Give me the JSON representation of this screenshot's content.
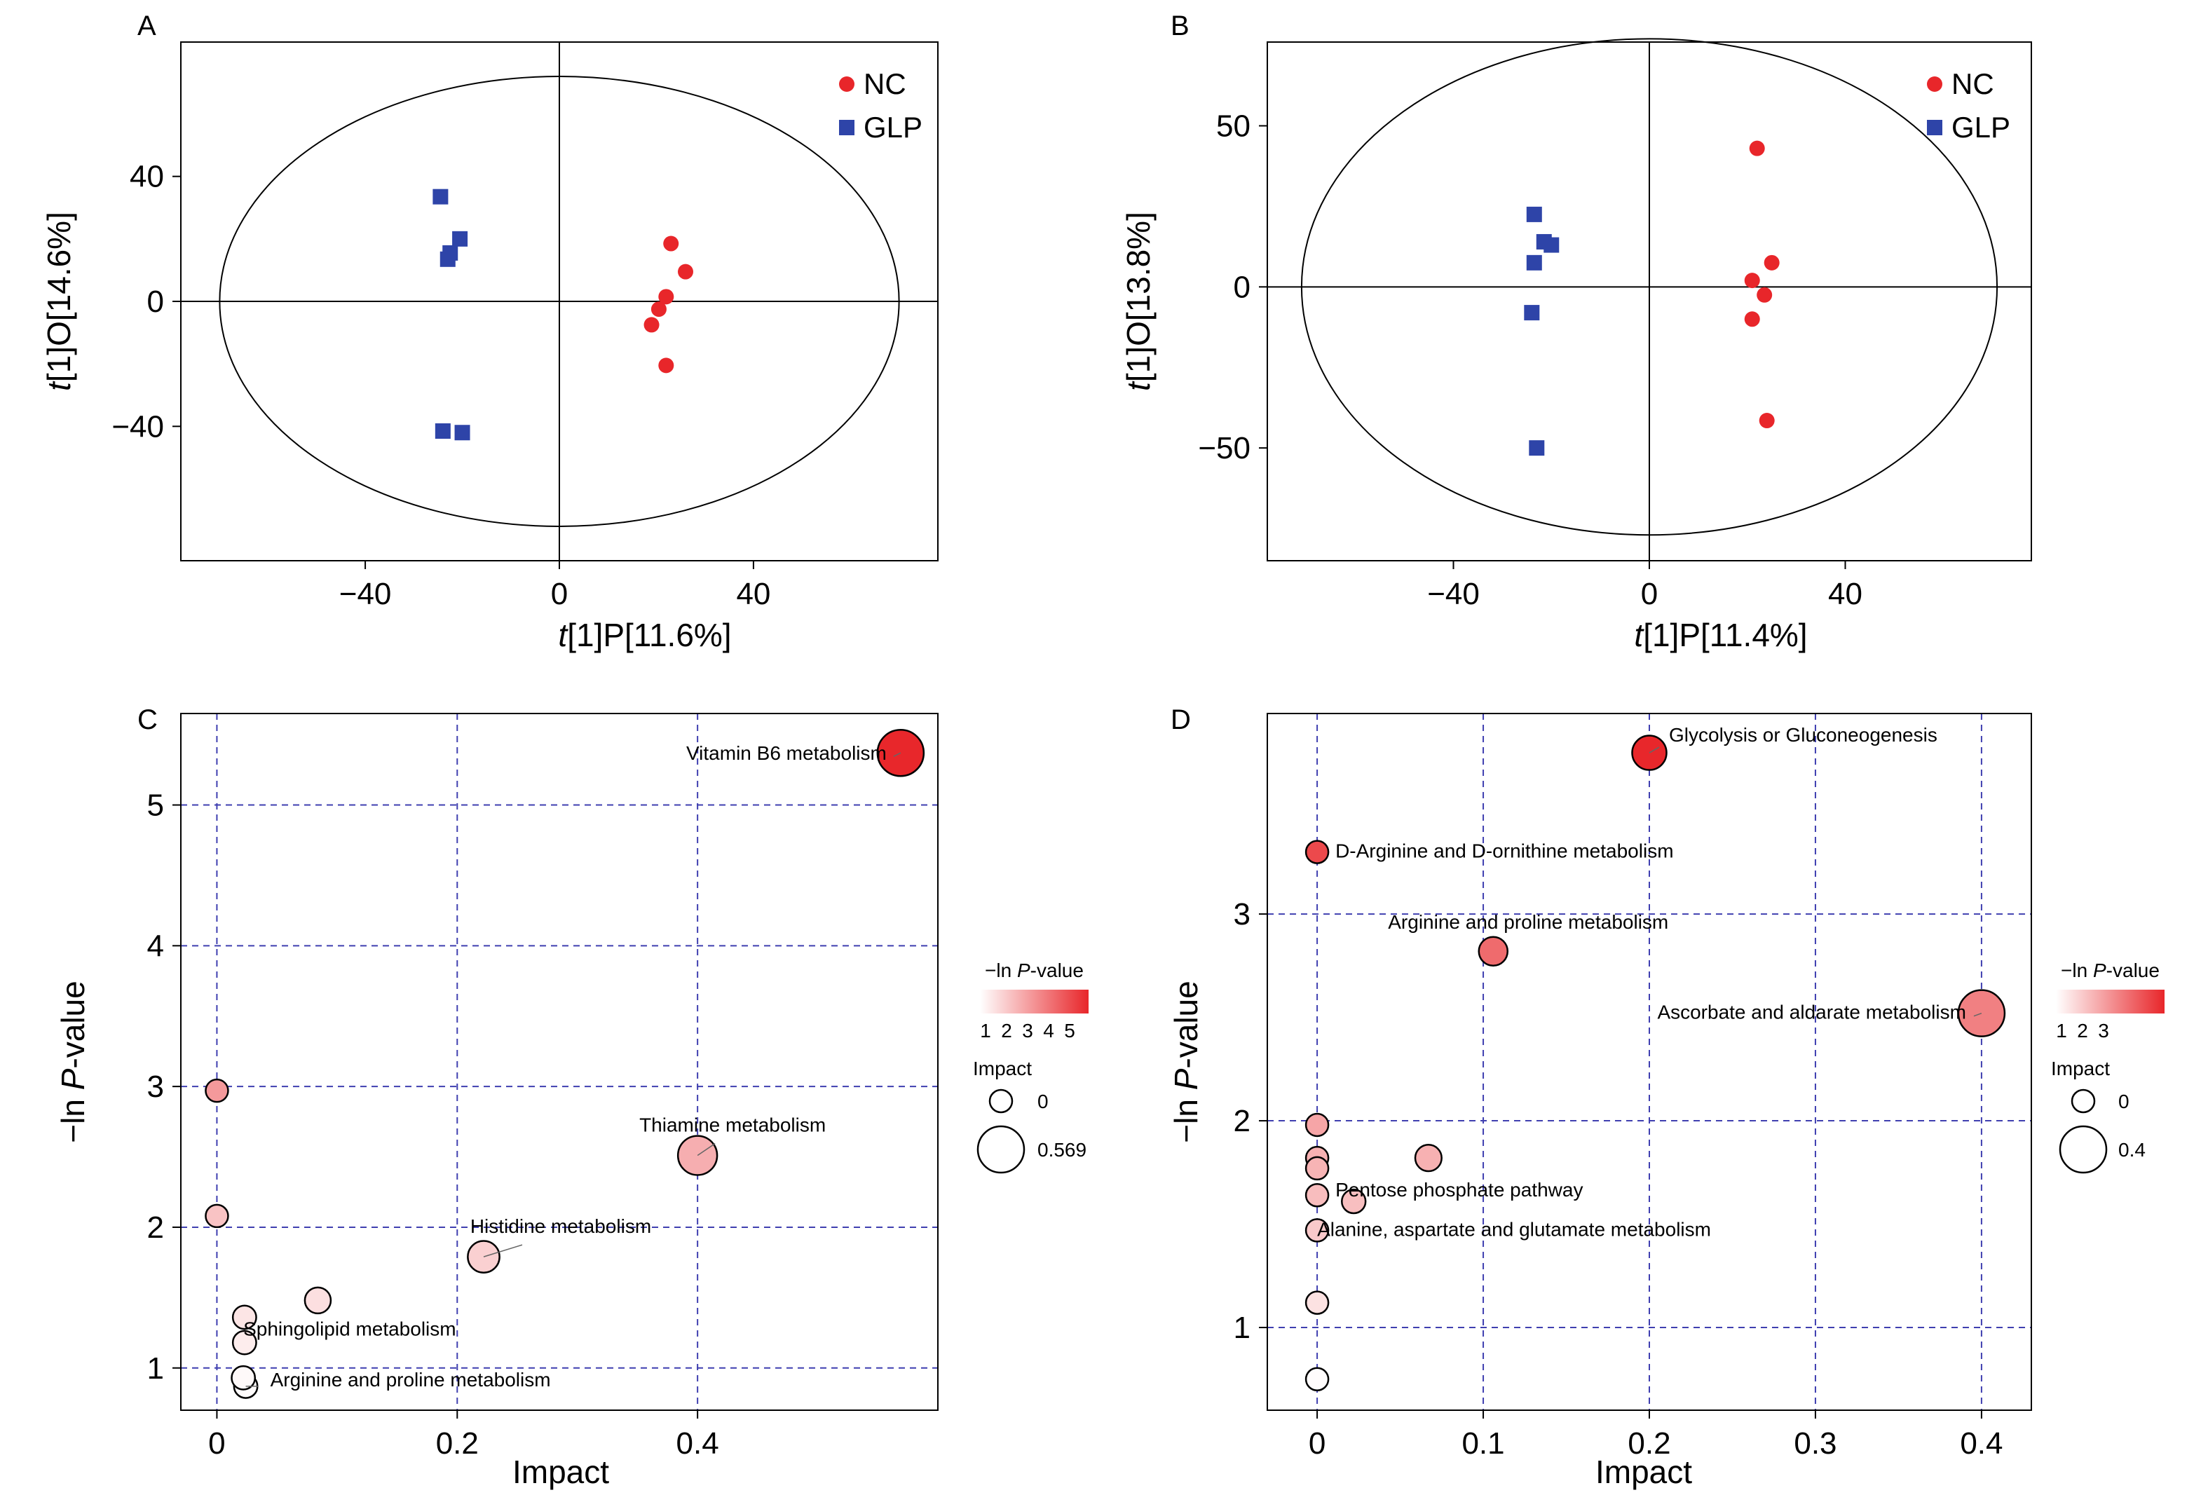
{
  "colors": {
    "nc": "#e8262a",
    "glp": "#2e44a8",
    "grid": "#3f3fb0",
    "scale_low": "#ffffff",
    "scale_high": "#e8262a",
    "axis": "#000000"
  },
  "chart_data": [
    {
      "panel": "A",
      "type": "scatter",
      "xlabel_italic": "t",
      "xlabel_rest": "[1]P[11.6%]",
      "ylabel_italic": "t",
      "ylabel_rest": "[1]O[14.6%]",
      "xlim": [
        -78,
        78
      ],
      "ylim": [
        -83,
        83
      ],
      "xticks": [
        -40,
        0,
        40
      ],
      "yticks": [
        -40,
        0,
        40
      ],
      "ellipse": {
        "rx": 70,
        "ry": 72
      },
      "legend": "top-right",
      "series": [
        {
          "name": "NC",
          "marker": "circle",
          "x": [
            23,
            26,
            22,
            20.5,
            19,
            22
          ],
          "y": [
            18.5,
            9.5,
            1.5,
            -2.5,
            -7.5,
            -20.5
          ]
        },
        {
          "name": "GLP",
          "marker": "square",
          "x": [
            -24.5,
            -20.5,
            -22.5,
            -23,
            -24,
            -20
          ],
          "y": [
            33.5,
            20,
            15.5,
            13.5,
            -41.5,
            -42
          ]
        }
      ]
    },
    {
      "panel": "B",
      "type": "scatter",
      "xlabel_italic": "t",
      "xlabel_rest": "[1]P[11.4%]",
      "ylabel_italic": "t",
      "ylabel_rest": "[1]O[13.8%]",
      "xlim": [
        -78,
        78
      ],
      "ylim": [
        -85,
        76
      ],
      "xticks": [
        -40,
        0,
        40
      ],
      "yticks": [
        -50,
        0,
        50
      ],
      "ellipse": {
        "rx": 71,
        "ry": 77
      },
      "legend": "top-right",
      "series": [
        {
          "name": "NC",
          "marker": "circle",
          "x": [
            22,
            25,
            21,
            23.5,
            21,
            24
          ],
          "y": [
            43,
            7.5,
            2,
            -2.5,
            -10,
            -41.5
          ]
        },
        {
          "name": "GLP",
          "marker": "square",
          "x": [
            -23.5,
            -21.5,
            -20,
            -23.5,
            -24,
            -23
          ],
          "y": [
            22.5,
            14,
            13,
            7.5,
            -8,
            -50
          ]
        }
      ]
    },
    {
      "panel": "C",
      "type": "scatter",
      "xlabel": "Impact",
      "ylabel_pre": "−ln ",
      "ylabel_italic": "P",
      "ylabel_post": "-value",
      "xlim": [
        -0.03,
        0.6
      ],
      "ylim": [
        0.7,
        5.65
      ],
      "xticks": [
        "0",
        "0.2",
        "0.4"
      ],
      "xtick_values": [
        0,
        0.2,
        0.4
      ],
      "yticks": [
        "1",
        "2",
        "3",
        "4",
        "5"
      ],
      "ytick_values": [
        1,
        2,
        3,
        4,
        5
      ],
      "grid": true,
      "color_scale": {
        "title_pre": "−ln ",
        "title_italic": "P",
        "title_post": "-value",
        "ticks": [
          "1",
          "2",
          "3",
          "4",
          "5"
        ],
        "min": 0.8,
        "max": 5.4
      },
      "size_legend": {
        "title": "Impact",
        "labels": [
          "0",
          "0.569"
        ]
      },
      "points": [
        {
          "impact": 0.569,
          "value": 5.37,
          "label": "Vitamin B6 metabolism"
        },
        {
          "impact": 0.4,
          "value": 2.51,
          "label": "Thiamine metabolism"
        },
        {
          "impact": 0.222,
          "value": 1.79,
          "label": "Histidine metabolism"
        },
        {
          "impact": 0.084,
          "value": 1.48,
          "label": ""
        },
        {
          "impact": 0.023,
          "value": 1.36,
          "label": "Sphingolipid metabolism"
        },
        {
          "impact": 0.023,
          "value": 1.18,
          "label": ""
        },
        {
          "impact": 0.022,
          "value": 0.93,
          "label": ""
        },
        {
          "impact": 0.024,
          "value": 0.87,
          "label": "Arginine and proline metabolism"
        },
        {
          "impact": 0.0,
          "value": 2.97,
          "label": ""
        },
        {
          "impact": 0.0,
          "value": 2.08,
          "label": ""
        }
      ]
    },
    {
      "panel": "D",
      "type": "scatter",
      "xlabel": "Impact",
      "ylabel_pre": "−ln ",
      "ylabel_italic": "P",
      "ylabel_post": "-value",
      "xlim": [
        -0.03,
        0.43
      ],
      "ylim": [
        0.6,
        3.97
      ],
      "xticks": [
        "0",
        "0.1",
        "0.2",
        "0.3",
        "0.4"
      ],
      "xtick_values": [
        0,
        0.1,
        0.2,
        0.3,
        0.4
      ],
      "yticks": [
        "1",
        "2",
        "3"
      ],
      "ytick_values": [
        1,
        2,
        3
      ],
      "grid": true,
      "color_scale": {
        "title_pre": "−ln ",
        "title_italic": "P",
        "title_post": "-value",
        "ticks": [
          "1",
          "2",
          "3"
        ],
        "min": 0.7,
        "max": 3.8
      },
      "size_legend": {
        "title": "Impact",
        "labels": [
          "0",
          "0.4"
        ]
      },
      "points": [
        {
          "impact": 0.2,
          "value": 3.78,
          "label": "Glycolysis or Gluconeogenesis"
        },
        {
          "impact": 0.0,
          "value": 3.3,
          "label": "D-Arginine and D-ornithine metabolism"
        },
        {
          "impact": 0.106,
          "value": 2.82,
          "label": "Arginine and proline metabolism"
        },
        {
          "impact": 0.4,
          "value": 2.52,
          "label": "Ascorbate and aldarate metabolism"
        },
        {
          "impact": 0.0,
          "value": 1.98,
          "label": ""
        },
        {
          "impact": 0.067,
          "value": 1.82,
          "label": ""
        },
        {
          "impact": 0.0,
          "value": 1.82,
          "label": ""
        },
        {
          "impact": 0.0,
          "value": 1.77,
          "label": "Pentose phosphate pathway"
        },
        {
          "impact": 0.0,
          "value": 1.64,
          "label": ""
        },
        {
          "impact": 0.022,
          "value": 1.61,
          "label": ""
        },
        {
          "impact": 0.0,
          "value": 1.47,
          "label": "Alanine, aspartate and glutamate metabolism"
        },
        {
          "impact": 0.0,
          "value": 1.12,
          "label": ""
        },
        {
          "impact": 0.0,
          "value": 0.75,
          "label": ""
        }
      ]
    }
  ]
}
